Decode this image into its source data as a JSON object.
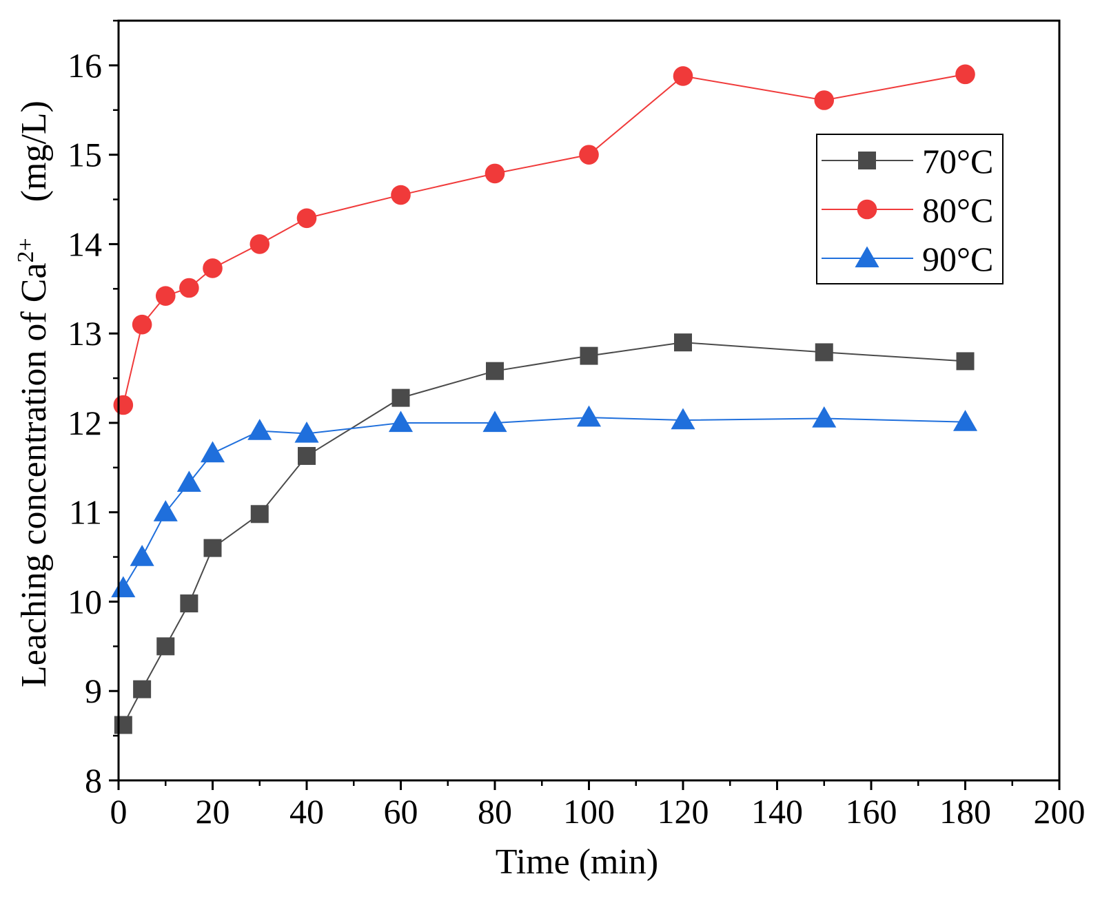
{
  "chart_data": {
    "type": "line",
    "title": "",
    "xlabel": "Time (min)",
    "ylabel": {
      "prefix": "Leaching concentration of Ca",
      "superscript": "2+",
      "suffix": "　(mg/L)"
    },
    "xlim": [
      0,
      200
    ],
    "ylim": [
      8,
      16.5
    ],
    "x_ticks": [
      0,
      20,
      40,
      60,
      80,
      100,
      120,
      140,
      160,
      180,
      200
    ],
    "y_ticks": [
      8,
      9,
      10,
      11,
      12,
      13,
      14,
      15,
      16
    ],
    "grid": false,
    "legend_position": "top-right",
    "series": [
      {
        "name": "70°C",
        "color": "#4a4a4a",
        "marker": "square",
        "x": [
          1,
          5,
          10,
          15,
          20,
          30,
          40,
          60,
          80,
          100,
          120,
          150,
          180
        ],
        "values": [
          8.62,
          9.02,
          9.5,
          9.98,
          10.6,
          10.98,
          11.63,
          12.28,
          12.58,
          12.75,
          12.9,
          12.79,
          12.69
        ]
      },
      {
        "name": "80°C",
        "color": "#f03a3a",
        "marker": "circle",
        "x": [
          1,
          5,
          10,
          15,
          20,
          30,
          40,
          60,
          80,
          100,
          120,
          150,
          180
        ],
        "values": [
          12.2,
          13.1,
          13.42,
          13.51,
          13.73,
          14.0,
          14.29,
          14.55,
          14.79,
          15.0,
          15.88,
          15.61,
          15.9
        ]
      },
      {
        "name": "90°C",
        "color": "#1f6fdc",
        "marker": "triangle",
        "x": [
          1,
          5,
          10,
          15,
          20,
          30,
          40,
          60,
          80,
          100,
          120,
          150,
          180
        ],
        "values": [
          10.15,
          10.5,
          11.0,
          11.33,
          11.66,
          11.91,
          11.88,
          12.0,
          12.0,
          12.06,
          12.03,
          12.05,
          12.01
        ]
      }
    ]
  }
}
